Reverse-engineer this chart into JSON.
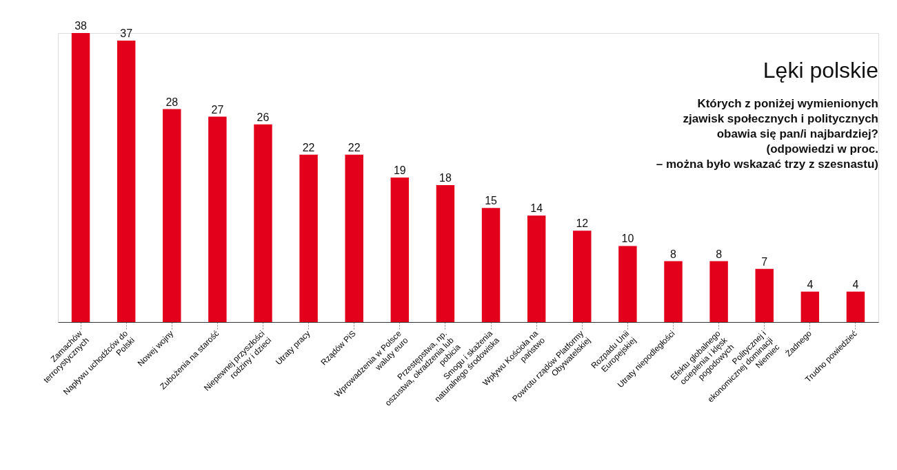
{
  "chart_data": {
    "type": "bar",
    "title": "Lęki polskie",
    "subtitle": "Których z poniżej wymienionych\nzjawisk społecznych i politycznych\nobawia się pan/i najbardziej?\n(odpowiedzi w proc.\n– można było wskazać trzy z szesnastu)",
    "categories": [
      "Zamachów terrorystycznych",
      "Napływu uchodźców do Polski",
      "Nowej wojny",
      "Zubożenia na starość",
      "Niepewnej przyszłości rodziny i dzieci",
      "Utraty pracy",
      "Rządów PiS",
      "Wprowadzenia w Polsce waluty euro",
      "Przestępstwa, np. oszustwa, okradzenia lub pobicia",
      "Smogu i skażenia naturalnego środowiska",
      "Wpływu Kościoła na państwo",
      "Powrotu rządów Platformy Obywatelskiej",
      "Rozpadu Unii Europejskiej",
      "Utraty niepodległości",
      "Efektu globalnego ocieplenia i klęsk pogodowych",
      "Politycznej i ekonomicznej dominacji Niemiec",
      "Żadnego",
      "Trudno powiedzieć"
    ],
    "values": [
      38,
      37,
      28,
      27,
      26,
      22,
      22,
      19,
      18,
      15,
      14,
      12,
      10,
      8,
      8,
      7,
      4,
      4
    ],
    "color": "#e2001a",
    "data_labels": true,
    "grid": false
  }
}
